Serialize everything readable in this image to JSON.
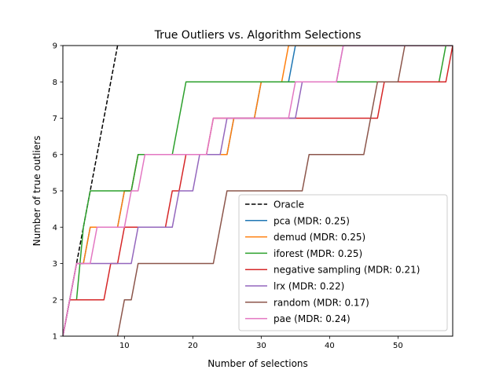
{
  "chart_data": {
    "type": "line",
    "title": "True Outliers vs. Algorithm Selections",
    "xlabel": "Number of selections",
    "ylabel": "Number of true outliers",
    "xlim": [
      1,
      58
    ],
    "ylim": [
      1,
      9
    ],
    "xticks": [
      10,
      20,
      30,
      40,
      50
    ],
    "yticks": [
      1,
      2,
      3,
      4,
      5,
      6,
      7,
      8,
      9
    ],
    "grid": false,
    "legend_position": "lower-right",
    "series": [
      {
        "name": "Oracle",
        "color": "#000000",
        "dashed": true,
        "points": [
          [
            1,
            1
          ],
          [
            9,
            9
          ]
        ]
      },
      {
        "name": "pca (MDR: 0.25)",
        "color": "#1f77b4",
        "points": [
          [
            1,
            1
          ],
          [
            2,
            2
          ],
          [
            3,
            3
          ],
          [
            4,
            3
          ],
          [
            5,
            4
          ],
          [
            9,
            4
          ],
          [
            10,
            5
          ],
          [
            11,
            5
          ],
          [
            12,
            6
          ],
          [
            14,
            6
          ],
          [
            15,
            6
          ],
          [
            25,
            6
          ],
          [
            26,
            7
          ],
          [
            29,
            7
          ],
          [
            30,
            8
          ],
          [
            34,
            8
          ],
          [
            35,
            9
          ],
          [
            58,
            9
          ]
        ]
      },
      {
        "name": "demud (MDR: 0.25)",
        "color": "#ff7f0e",
        "points": [
          [
            1,
            1
          ],
          [
            2,
            2
          ],
          [
            3,
            3
          ],
          [
            4,
            3
          ],
          [
            5,
            4
          ],
          [
            9,
            4
          ],
          [
            10,
            5
          ],
          [
            11,
            5
          ],
          [
            12,
            6
          ],
          [
            25,
            6
          ],
          [
            26,
            7
          ],
          [
            29,
            7
          ],
          [
            30,
            8
          ],
          [
            33,
            8
          ],
          [
            34,
            9
          ],
          [
            58,
            9
          ]
        ]
      },
      {
        "name": "iforest (MDR: 0.25)",
        "color": "#2ca02c",
        "points": [
          [
            1,
            1
          ],
          [
            2,
            2
          ],
          [
            3,
            2
          ],
          [
            4,
            4
          ],
          [
            5,
            5
          ],
          [
            10,
            5
          ],
          [
            11,
            5
          ],
          [
            12,
            6
          ],
          [
            17,
            6
          ],
          [
            19,
            8
          ],
          [
            56,
            8
          ],
          [
            57,
            9
          ],
          [
            58,
            9
          ]
        ]
      },
      {
        "name": "negative sampling (MDR: 0.21)",
        "color": "#d62728",
        "points": [
          [
            1,
            1
          ],
          [
            2,
            2
          ],
          [
            7,
            2
          ],
          [
            8,
            3
          ],
          [
            9,
            3
          ],
          [
            10,
            4
          ],
          [
            16,
            4
          ],
          [
            17,
            5
          ],
          [
            18,
            5
          ],
          [
            19,
            6
          ],
          [
            22,
            6
          ],
          [
            23,
            7
          ],
          [
            47,
            7
          ],
          [
            48,
            8
          ],
          [
            57,
            8
          ],
          [
            58,
            9
          ]
        ]
      },
      {
        "name": "lrx (MDR: 0.22)",
        "color": "#9467bd",
        "points": [
          [
            1,
            1
          ],
          [
            2,
            2
          ],
          [
            3,
            3
          ],
          [
            10,
            3
          ],
          [
            11,
            3
          ],
          [
            12,
            4
          ],
          [
            17,
            4
          ],
          [
            18,
            5
          ],
          [
            20,
            5
          ],
          [
            21,
            6
          ],
          [
            24,
            6
          ],
          [
            25,
            7
          ],
          [
            35,
            7
          ],
          [
            36,
            8
          ],
          [
            41,
            8
          ],
          [
            42,
            9
          ],
          [
            58,
            9
          ]
        ]
      },
      {
        "name": "random (MDR: 0.17)",
        "color": "#8c564b",
        "points": [
          [
            9,
            1
          ],
          [
            10,
            2
          ],
          [
            11,
            2
          ],
          [
            12,
            3
          ],
          [
            23,
            3
          ],
          [
            24,
            4
          ],
          [
            25,
            5
          ],
          [
            36,
            5
          ],
          [
            37,
            6
          ],
          [
            45,
            6
          ],
          [
            46,
            7
          ],
          [
            47,
            8
          ],
          [
            50,
            8
          ],
          [
            51,
            9
          ],
          [
            58,
            9
          ]
        ]
      },
      {
        "name": "pae (MDR: 0.24)",
        "color": "#e377c2",
        "points": [
          [
            1,
            1
          ],
          [
            2,
            2
          ],
          [
            3,
            3
          ],
          [
            5,
            3
          ],
          [
            6,
            4
          ],
          [
            10,
            4
          ],
          [
            11,
            5
          ],
          [
            12,
            5
          ],
          [
            13,
            6
          ],
          [
            22,
            6
          ],
          [
            23,
            7
          ],
          [
            34,
            7
          ],
          [
            35,
            8
          ],
          [
            41,
            8
          ],
          [
            42,
            9
          ],
          [
            58,
            9
          ]
        ]
      }
    ]
  }
}
